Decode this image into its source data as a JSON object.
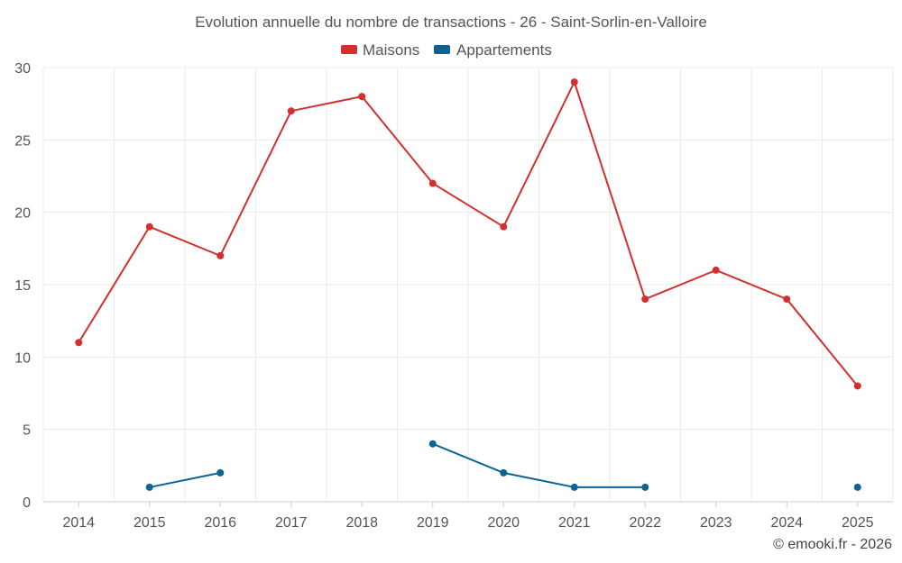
{
  "chart_data": {
    "type": "line",
    "title": "Evolution annuelle du nombre de transactions - 26 - Saint-Sorlin-en-Valloire",
    "categories": [
      "2014",
      "2015",
      "2016",
      "2017",
      "2018",
      "2019",
      "2020",
      "2021",
      "2022",
      "2023",
      "2024",
      "2025"
    ],
    "ylim": [
      0,
      30
    ],
    "yticks": [
      0,
      5,
      10,
      15,
      20,
      25,
      30
    ],
    "grid": true,
    "legend_position": "top-center",
    "series": [
      {
        "name": "Maisons",
        "color": "#d32f2f",
        "values": [
          11,
          19,
          17,
          27,
          28,
          22,
          19,
          29,
          14,
          16,
          14,
          8
        ]
      },
      {
        "name": "Appartements",
        "color": "#0b6496",
        "values": [
          null,
          1,
          2,
          null,
          null,
          4,
          2,
          1,
          1,
          null,
          null,
          1
        ]
      }
    ]
  },
  "credit": "© emooki.fr - 2026"
}
